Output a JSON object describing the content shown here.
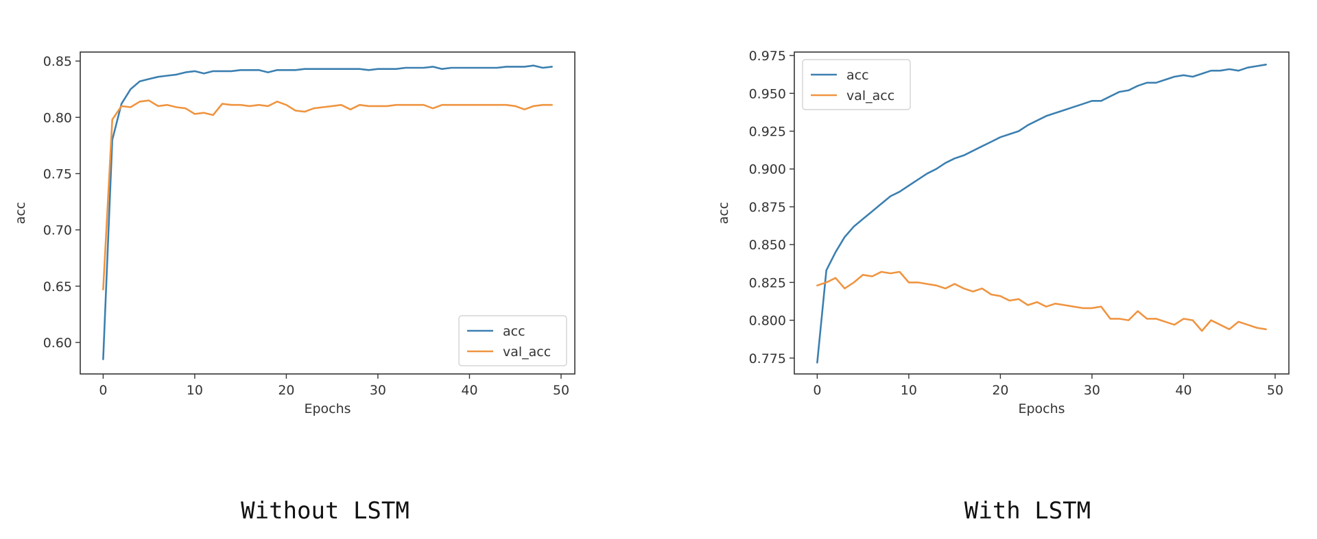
{
  "colors": {
    "acc": "#3b7fb0",
    "val_acc": "#ef9440",
    "axis": "#333333",
    "tick_text": "#333333"
  },
  "chart_data": [
    {
      "type": "line",
      "title": "Without LSTM",
      "xlabel": "Epochs",
      "ylabel": "acc",
      "xlim": [
        -2.5,
        51.5
      ],
      "ylim": [
        0.572,
        0.858
      ],
      "xticks": [
        0,
        10,
        20,
        30,
        40,
        50
      ],
      "yticks": [
        0.6,
        0.65,
        0.7,
        0.75,
        0.8,
        0.85
      ],
      "ytick_labels": [
        "0.60",
        "0.65",
        "0.70",
        "0.75",
        "0.80",
        "0.85"
      ],
      "xtick_labels": [
        "0",
        "10",
        "20",
        "30",
        "40",
        "50"
      ],
      "grid": false,
      "legend": "lower-right",
      "series": [
        {
          "name": "acc",
          "color": "#3b7fb0",
          "x": [
            0,
            1,
            2,
            3,
            4,
            5,
            6,
            7,
            8,
            9,
            10,
            11,
            12,
            13,
            14,
            15,
            16,
            17,
            18,
            19,
            20,
            21,
            22,
            23,
            24,
            25,
            26,
            27,
            28,
            29,
            30,
            31,
            32,
            33,
            34,
            35,
            36,
            37,
            38,
            39,
            40,
            41,
            42,
            43,
            44,
            45,
            46,
            47,
            48,
            49
          ],
          "y": [
            0.585,
            0.78,
            0.812,
            0.825,
            0.832,
            0.834,
            0.836,
            0.837,
            0.838,
            0.84,
            0.841,
            0.839,
            0.841,
            0.841,
            0.841,
            0.842,
            0.842,
            0.842,
            0.84,
            0.842,
            0.842,
            0.842,
            0.843,
            0.843,
            0.843,
            0.843,
            0.843,
            0.843,
            0.843,
            0.842,
            0.843,
            0.843,
            0.843,
            0.844,
            0.844,
            0.844,
            0.845,
            0.843,
            0.844,
            0.844,
            0.844,
            0.844,
            0.844,
            0.844,
            0.845,
            0.845,
            0.845,
            0.846,
            0.844,
            0.845
          ]
        },
        {
          "name": "val_acc",
          "color": "#ef9440",
          "x": [
            0,
            1,
            2,
            3,
            4,
            5,
            6,
            7,
            8,
            9,
            10,
            11,
            12,
            13,
            14,
            15,
            16,
            17,
            18,
            19,
            20,
            21,
            22,
            23,
            24,
            25,
            26,
            27,
            28,
            29,
            30,
            31,
            32,
            33,
            34,
            35,
            36,
            37,
            38,
            39,
            40,
            41,
            42,
            43,
            44,
            45,
            46,
            47,
            48,
            49
          ],
          "y": [
            0.647,
            0.798,
            0.81,
            0.809,
            0.814,
            0.815,
            0.81,
            0.811,
            0.809,
            0.808,
            0.803,
            0.804,
            0.802,
            0.812,
            0.811,
            0.811,
            0.81,
            0.811,
            0.81,
            0.814,
            0.811,
            0.806,
            0.805,
            0.808,
            0.809,
            0.81,
            0.811,
            0.807,
            0.811,
            0.81,
            0.81,
            0.81,
            0.811,
            0.811,
            0.811,
            0.811,
            0.808,
            0.811,
            0.811,
            0.811,
            0.811,
            0.811,
            0.811,
            0.811,
            0.811,
            0.81,
            0.807,
            0.81,
            0.811,
            0.811
          ]
        }
      ]
    },
    {
      "type": "line",
      "title": "With LSTM",
      "xlabel": "Epochs",
      "ylabel": "acc",
      "xlim": [
        -2.5,
        51.5
      ],
      "ylim": [
        0.7645,
        0.9773
      ],
      "xticks": [
        0,
        10,
        20,
        30,
        40,
        50
      ],
      "yticks": [
        0.775,
        0.8,
        0.825,
        0.85,
        0.875,
        0.9,
        0.925,
        0.95,
        0.975
      ],
      "ytick_labels": [
        "0.775",
        "0.800",
        "0.825",
        "0.850",
        "0.875",
        "0.900",
        "0.925",
        "0.950",
        "0.975"
      ],
      "xtick_labels": [
        "0",
        "10",
        "20",
        "30",
        "40",
        "50"
      ],
      "grid": false,
      "legend": "upper-left",
      "series": [
        {
          "name": "acc",
          "color": "#3b7fb0",
          "x": [
            0,
            1,
            2,
            3,
            4,
            5,
            6,
            7,
            8,
            9,
            10,
            11,
            12,
            13,
            14,
            15,
            16,
            17,
            18,
            19,
            20,
            21,
            22,
            23,
            24,
            25,
            26,
            27,
            28,
            29,
            30,
            31,
            32,
            33,
            34,
            35,
            36,
            37,
            38,
            39,
            40,
            41,
            42,
            43,
            44,
            45,
            46,
            47,
            48,
            49
          ],
          "y": [
            0.772,
            0.833,
            0.845,
            0.855,
            0.862,
            0.867,
            0.872,
            0.877,
            0.882,
            0.885,
            0.889,
            0.893,
            0.897,
            0.9,
            0.904,
            0.907,
            0.909,
            0.912,
            0.915,
            0.918,
            0.921,
            0.923,
            0.925,
            0.929,
            0.932,
            0.935,
            0.937,
            0.939,
            0.941,
            0.943,
            0.945,
            0.945,
            0.948,
            0.951,
            0.952,
            0.955,
            0.957,
            0.957,
            0.959,
            0.961,
            0.962,
            0.961,
            0.963,
            0.965,
            0.965,
            0.966,
            0.965,
            0.967,
            0.968,
            0.969
          ]
        },
        {
          "name": "val_acc",
          "color": "#ef9440",
          "x": [
            0,
            1,
            2,
            3,
            4,
            5,
            6,
            7,
            8,
            9,
            10,
            11,
            12,
            13,
            14,
            15,
            16,
            17,
            18,
            19,
            20,
            21,
            22,
            23,
            24,
            25,
            26,
            27,
            28,
            29,
            30,
            31,
            32,
            33,
            34,
            35,
            36,
            37,
            38,
            39,
            40,
            41,
            42,
            43,
            44,
            45,
            46,
            47,
            48,
            49
          ],
          "y": [
            0.823,
            0.825,
            0.828,
            0.821,
            0.825,
            0.83,
            0.829,
            0.832,
            0.831,
            0.832,
            0.825,
            0.825,
            0.824,
            0.823,
            0.821,
            0.824,
            0.821,
            0.819,
            0.821,
            0.817,
            0.816,
            0.813,
            0.814,
            0.81,
            0.812,
            0.809,
            0.811,
            0.81,
            0.809,
            0.808,
            0.808,
            0.809,
            0.801,
            0.801,
            0.8,
            0.806,
            0.801,
            0.801,
            0.799,
            0.797,
            0.801,
            0.8,
            0.793,
            0.8,
            0.797,
            0.794,
            0.799,
            0.797,
            0.795,
            0.794
          ]
        }
      ]
    }
  ]
}
